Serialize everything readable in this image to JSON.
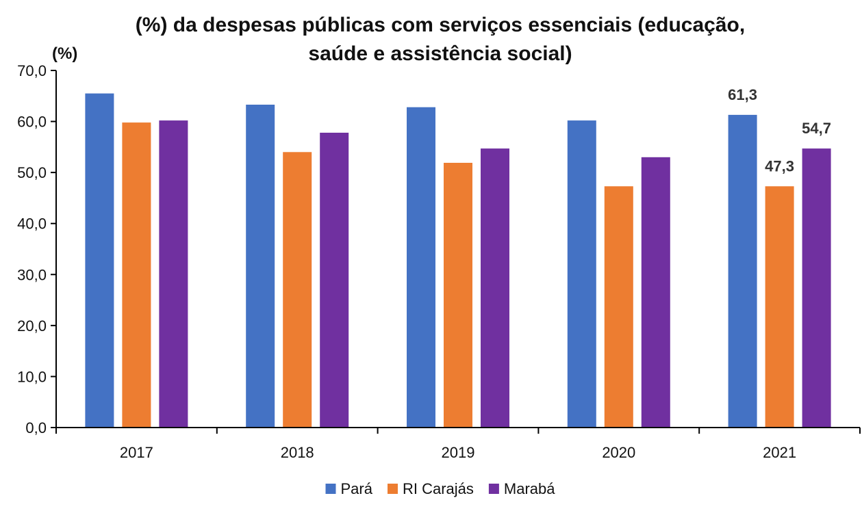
{
  "chart_data": {
    "type": "bar",
    "title_lines": [
      "(%) da despesas públicas com serviços essenciais (educação,",
      "saúde e assistência social)"
    ],
    "ylabel": "(%)",
    "xlabel": "",
    "ylim": [
      0,
      70
    ],
    "yticks": [
      0,
      10,
      20,
      30,
      40,
      50,
      60,
      70
    ],
    "ytick_labels": [
      "0,0",
      "10,0",
      "20,0",
      "30,0",
      "40,0",
      "50,0",
      "60,0",
      "70,0"
    ],
    "categories": [
      "2017",
      "2018",
      "2019",
      "2020",
      "2021"
    ],
    "series": [
      {
        "name": "Pará",
        "color": "#4472C4",
        "values": [
          65.5,
          63.3,
          62.8,
          60.2,
          61.3
        ]
      },
      {
        "name": "RI Carajás",
        "color": "#ED7D31",
        "values": [
          59.8,
          54.0,
          51.9,
          47.3,
          47.3
        ]
      },
      {
        "name": "Marabá",
        "color": "#7030A0",
        "values": [
          60.2,
          57.8,
          54.7,
          53.0,
          54.7
        ]
      }
    ],
    "data_labels": [
      {
        "category": "2021",
        "series": "Pará",
        "value": 61.3,
        "text": "61,3"
      },
      {
        "category": "2021",
        "series": "RI Carajás",
        "value": 47.3,
        "text": "47,3"
      },
      {
        "category": "2021",
        "series": "Marabá",
        "value": 54.7,
        "text": "54,7"
      }
    ],
    "grid": false,
    "legend_position": "bottom-center"
  }
}
